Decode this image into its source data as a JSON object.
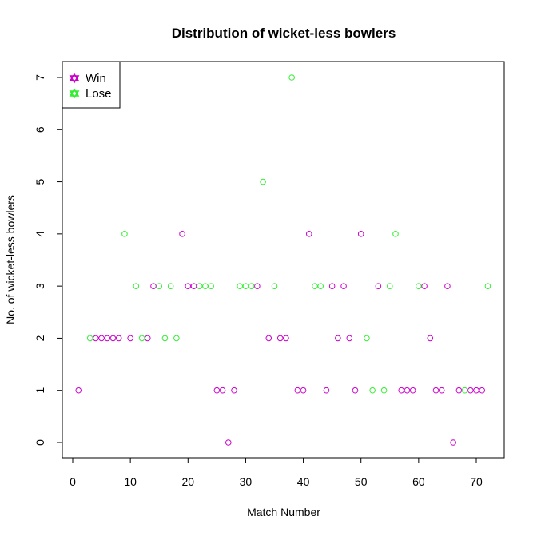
{
  "chart_data": {
    "type": "scatter",
    "title": "Distribution of wicket-less bowlers",
    "xlabel": "Match Number",
    "ylabel": "No. of wicket-less bowlers",
    "xlim": [
      0,
      72
    ],
    "ylim": [
      0,
      7
    ],
    "xticks": [
      0,
      10,
      20,
      30,
      40,
      50,
      60,
      70
    ],
    "yticks": [
      0,
      1,
      2,
      3,
      4,
      5,
      6,
      7
    ],
    "legend_position": "top-left",
    "grid": false,
    "series": [
      {
        "name": "Win",
        "color": "#cc00cc",
        "points": [
          [
            1,
            1
          ],
          [
            4,
            2
          ],
          [
            5,
            2
          ],
          [
            6,
            2
          ],
          [
            7,
            2
          ],
          [
            8,
            2
          ],
          [
            10,
            2
          ],
          [
            13,
            2
          ],
          [
            14,
            3
          ],
          [
            19,
            4
          ],
          [
            20,
            3
          ],
          [
            21,
            3
          ],
          [
            25,
            1
          ],
          [
            26,
            1
          ],
          [
            27,
            0
          ],
          [
            28,
            1
          ],
          [
            32,
            3
          ],
          [
            34,
            2
          ],
          [
            36,
            2
          ],
          [
            37,
            2
          ],
          [
            39,
            1
          ],
          [
            40,
            1
          ],
          [
            41,
            4
          ],
          [
            44,
            1
          ],
          [
            45,
            3
          ],
          [
            46,
            2
          ],
          [
            47,
            3
          ],
          [
            48,
            2
          ],
          [
            49,
            1
          ],
          [
            50,
            4
          ],
          [
            53,
            3
          ],
          [
            57,
            1
          ],
          [
            58,
            1
          ],
          [
            59,
            1
          ],
          [
            61,
            3
          ],
          [
            62,
            2
          ],
          [
            63,
            1
          ],
          [
            64,
            1
          ],
          [
            65,
            3
          ],
          [
            66,
            0
          ],
          [
            67,
            1
          ],
          [
            69,
            1
          ],
          [
            70,
            1
          ],
          [
            71,
            1
          ]
        ]
      },
      {
        "name": "Lose",
        "color": "#33ee33",
        "points": [
          [
            3,
            2
          ],
          [
            9,
            4
          ],
          [
            11,
            3
          ],
          [
            12,
            2
          ],
          [
            15,
            3
          ],
          [
            16,
            2
          ],
          [
            17,
            3
          ],
          [
            18,
            2
          ],
          [
            22,
            3
          ],
          [
            23,
            3
          ],
          [
            24,
            3
          ],
          [
            29,
            3
          ],
          [
            30,
            3
          ],
          [
            31,
            3
          ],
          [
            33,
            5
          ],
          [
            35,
            3
          ],
          [
            38,
            7
          ],
          [
            42,
            3
          ],
          [
            43,
            3
          ],
          [
            51,
            2
          ],
          [
            52,
            1
          ],
          [
            54,
            1
          ],
          [
            55,
            3
          ],
          [
            56,
            4
          ],
          [
            60,
            3
          ],
          [
            68,
            1
          ],
          [
            72,
            3
          ]
        ]
      }
    ]
  }
}
